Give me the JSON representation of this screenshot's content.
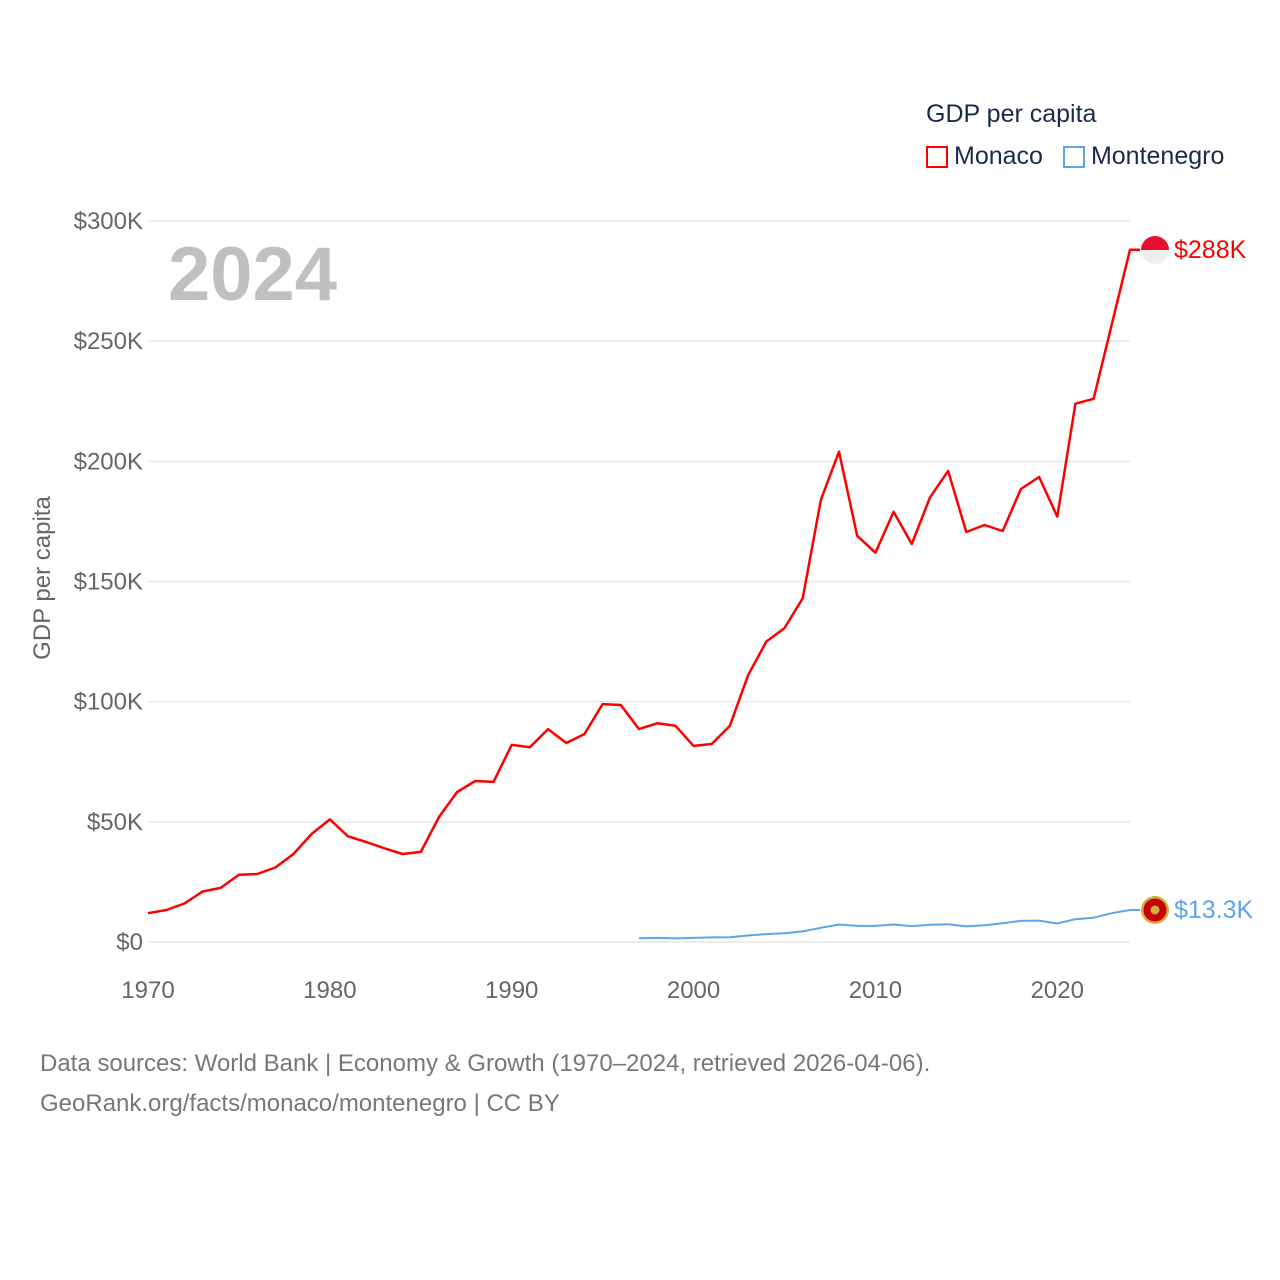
{
  "chart_data": {
    "type": "line",
    "title": "GDP per capita",
    "year_label": "2024",
    "ylabel": "GDP per capita",
    "xlabel": "",
    "xlim": [
      1970,
      2024
    ],
    "ylim": [
      0,
      300000
    ],
    "x_ticks": [
      1970,
      1980,
      1990,
      2000,
      2010,
      2020
    ],
    "y_ticks": [
      {
        "value": 0,
        "label": "$0"
      },
      {
        "value": 50000,
        "label": "$50K"
      },
      {
        "value": 100000,
        "label": "$100K"
      },
      {
        "value": 150000,
        "label": "$150K"
      },
      {
        "value": 200000,
        "label": "$200K"
      },
      {
        "value": 250000,
        "label": "$250K"
      },
      {
        "value": 300000,
        "label": "$300K"
      }
    ],
    "grid": true,
    "legend_placement": "top-right",
    "series": [
      {
        "name": "Monaco",
        "color": "#ff0000",
        "end_label": "$288K",
        "x": [
          1970,
          1971,
          1972,
          1973,
          1974,
          1975,
          1976,
          1977,
          1978,
          1979,
          1980,
          1981,
          1982,
          1983,
          1984,
          1985,
          1986,
          1987,
          1988,
          1989,
          1990,
          1991,
          1992,
          1993,
          1994,
          1995,
          1996,
          1997,
          1998,
          1999,
          2000,
          2001,
          2002,
          2003,
          2004,
          2005,
          2006,
          2007,
          2008,
          2009,
          2010,
          2011,
          2012,
          2013,
          2014,
          2015,
          2016,
          2017,
          2018,
          2019,
          2020,
          2021,
          2022,
          2023,
          2024
        ],
        "values": [
          12000,
          13300,
          16000,
          21000,
          22500,
          28000,
          28300,
          31000,
          36600,
          45000,
          51000,
          44000,
          41600,
          39000,
          36600,
          37500,
          52000,
          62400,
          67000,
          66600,
          82000,
          81000,
          88600,
          82800,
          86500,
          99000,
          98600,
          88600,
          91000,
          90000,
          81600,
          82400,
          90000,
          111000,
          125000,
          130600,
          143000,
          184000,
          204000,
          169000,
          162000,
          179000,
          165600,
          185000,
          196000,
          170600,
          173500,
          171000,
          188500,
          193500,
          177000,
          224000,
          226000,
          257000,
          288000
        ]
      },
      {
        "name": "Montenegro",
        "color": "#5aa5ec",
        "end_label": "$13.3K",
        "x": [
          1997,
          1998,
          1999,
          2000,
          2001,
          2002,
          2003,
          2004,
          2005,
          2006,
          2007,
          2008,
          2009,
          2010,
          2011,
          2012,
          2013,
          2014,
          2015,
          2016,
          2017,
          2018,
          2019,
          2020,
          2021,
          2022,
          2023,
          2024
        ],
        "values": [
          1600,
          1700,
          1500,
          1700,
          1900,
          2000,
          2700,
          3300,
          3600,
          4400,
          5900,
          7300,
          6700,
          6700,
          7300,
          6600,
          7200,
          7400,
          6500,
          7000,
          7800,
          8800,
          8900,
          7700,
          9500,
          10100,
          12000,
          13300
        ]
      }
    ]
  },
  "footer": {
    "line1": "Data sources: World Bank | Economy & Growth (1970–2024, retrieved 2026-04-06).",
    "line2": "GeoRank.org/facts/monaco/montenegro | CC BY"
  }
}
